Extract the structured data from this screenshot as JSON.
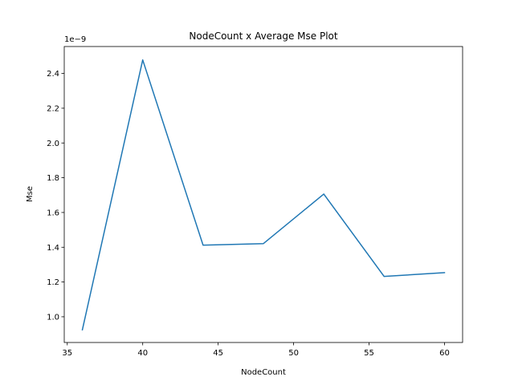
{
  "chart_data": {
    "type": "line",
    "title": "NodeCount x Average Mse Plot",
    "xlabel": "NodeCount",
    "ylabel": "Mse",
    "y_offset_label": "1e−9",
    "x_scale": 1,
    "y_scale": 1e-09,
    "xlim": [
      34.8,
      61.2
    ],
    "ylim": [
      0.852,
      2.555
    ],
    "xticks": [
      35,
      40,
      45,
      50,
      55,
      60
    ],
    "xtick_labels": [
      "35",
      "40",
      "45",
      "50",
      "55",
      "60"
    ],
    "yticks": [
      1.0,
      1.2,
      1.4,
      1.6,
      1.8,
      2.0,
      2.2,
      2.4
    ],
    "ytick_labels": [
      "1.0",
      "1.2",
      "1.4",
      "1.6",
      "1.8",
      "2.0",
      "2.2",
      "2.4"
    ],
    "grid": false,
    "series": [
      {
        "color": "#1f77b4",
        "x": [
          36,
          40,
          44,
          48,
          52,
          56,
          60
        ],
        "y": [
          0.925,
          2.478,
          1.412,
          1.421,
          1.706,
          1.232,
          1.254
        ]
      }
    ]
  }
}
